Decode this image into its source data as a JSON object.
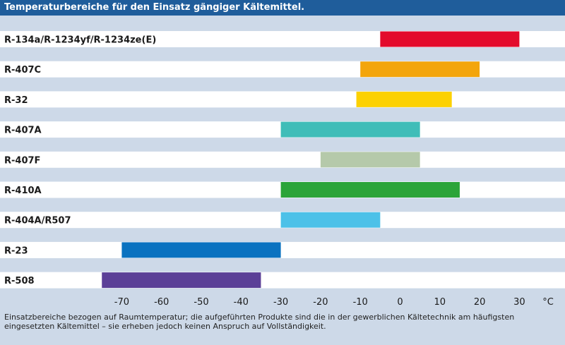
{
  "chart_data": {
    "type": "bar",
    "orientation": "horizontal-range",
    "title": "Temperaturbereiche für den Einsatz gängiger Kältemittel.",
    "categories": [
      "R-134a/R-1234yf/R-1234ze(E)",
      "R-407C",
      "R-32",
      "R-407A",
      "R-407F",
      "R-410A",
      "R-404A/R507",
      "R-23",
      "R-508"
    ],
    "ranges": [
      [
        -5,
        30
      ],
      [
        -10,
        20
      ],
      [
        -11,
        13
      ],
      [
        -30,
        5
      ],
      [
        -20,
        5
      ],
      [
        -30,
        15
      ],
      [
        -30,
        -5
      ],
      [
        -70,
        -30
      ],
      [
        -75,
        -35
      ]
    ],
    "colors": [
      "#e30b2c",
      "#f3a50b",
      "#fcd103",
      "#3fbdb8",
      "#b5c9aa",
      "#2ba439",
      "#4cc1e8",
      "#0a72c0",
      "#5b3f97"
    ],
    "x_ticks": [
      "-70",
      "-60",
      "-50",
      "-40",
      "-30",
      "-20",
      "-10",
      "0",
      "10",
      "20",
      "30"
    ],
    "x_tick_values": [
      -70,
      -60,
      -50,
      -40,
      -30,
      -20,
      -10,
      0,
      10,
      20,
      30
    ],
    "x_unit": "°C",
    "xlim": [
      -80,
      35
    ],
    "grid": false,
    "row_fill": "#ffffff",
    "band_fill": "#cdd9e8",
    "title_fill": "#1f5d9b"
  },
  "footnote": "Einsatzbereiche bezogen auf Raumtemperatur; die aufgeführten Produkte sind die in der gewerblichen Kältetechnik am häufigsten eingesetzten Kältemittel – sie erheben jedoch keinen Anspruch auf Vollständigkeit."
}
